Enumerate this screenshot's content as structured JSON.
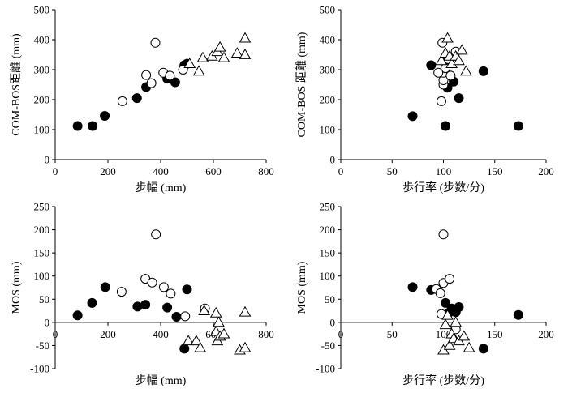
{
  "chart_data": [
    {
      "type": "scatter",
      "xlabel": "步幅 (mm)",
      "ylabel": "COM-BOS距離 (mm)",
      "xlim": [
        0,
        800
      ],
      "ylim": [
        0,
        500
      ],
      "xticks": [
        0,
        200,
        400,
        600,
        800
      ],
      "yticks": [
        0,
        100,
        200,
        300,
        400,
        500
      ],
      "series": [
        {
          "marker": "filled-circle",
          "points": [
            [
              85,
              112
            ],
            [
              142,
              112
            ],
            [
              188,
              146
            ],
            [
              310,
              205
            ],
            [
              345,
              242
            ],
            [
              425,
              270
            ],
            [
              455,
              258
            ],
            [
              490,
              315
            ],
            [
              500,
              320
            ]
          ]
        },
        {
          "marker": "open-circle",
          "points": [
            [
              255,
              195
            ],
            [
              345,
              282
            ],
            [
              365,
              255
            ],
            [
              380,
              390
            ],
            [
              410,
              290
            ],
            [
              435,
              280
            ],
            [
              485,
              300
            ]
          ]
        },
        {
          "marker": "open-triangle",
          "points": [
            [
              510,
              320
            ],
            [
              545,
              295
            ],
            [
              560,
              340
            ],
            [
              595,
              345
            ],
            [
              615,
              360
            ],
            [
              625,
              375
            ],
            [
              640,
              340
            ],
            [
              690,
              355
            ],
            [
              720,
              405
            ],
            [
              720,
              350
            ]
          ]
        }
      ]
    },
    {
      "type": "scatter",
      "xlabel": "歩行率 (步数/分)",
      "ylabel": "COM-BOS 距離 (mm)",
      "xlim": [
        0,
        200
      ],
      "ylim": [
        0,
        500
      ],
      "xticks": [
        0,
        50,
        100,
        150,
        200
      ],
      "yticks": [
        0,
        100,
        200,
        300,
        400,
        500
      ],
      "series": [
        {
          "marker": "filled-circle",
          "points": [
            [
              70,
              145
            ],
            [
              88,
              315
            ],
            [
              102,
              112
            ],
            [
              104,
              240
            ],
            [
              110,
              260
            ],
            [
              115,
              205
            ],
            [
              139,
              295
            ],
            [
              173,
              112
            ]
          ]
        },
        {
          "marker": "open-circle",
          "points": [
            [
              98,
              195
            ],
            [
              99,
              390
            ],
            [
              100,
              250
            ],
            [
              100,
              265
            ],
            [
              100,
              290
            ],
            [
              102,
              305
            ],
            [
              105,
              335
            ],
            [
              107,
              280
            ],
            [
              112,
              360
            ],
            [
              95,
              290
            ]
          ]
        },
        {
          "marker": "open-triangle",
          "points": [
            [
              98,
              330
            ],
            [
              102,
              355
            ],
            [
              104,
              405
            ],
            [
              106,
              345
            ],
            [
              108,
              320
            ],
            [
              112,
              345
            ],
            [
              115,
              330
            ],
            [
              118,
              365
            ],
            [
              122,
              295
            ]
          ]
        }
      ]
    },
    {
      "type": "scatter",
      "xlabel": "步幅 (mm)",
      "ylabel": "MOS (mm)",
      "xlim": [
        0,
        800
      ],
      "ylim": [
        -100,
        250
      ],
      "xticks": [
        0,
        200,
        400,
        600,
        800
      ],
      "yticks": [
        -100,
        -50,
        0,
        50,
        100,
        150,
        200,
        250
      ],
      "series": [
        {
          "marker": "filled-circle",
          "points": [
            [
              85,
              15
            ],
            [
              140,
              42
            ],
            [
              190,
              76
            ],
            [
              312,
              34
            ],
            [
              342,
              38
            ],
            [
              425,
              32
            ],
            [
              460,
              12
            ],
            [
              490,
              -57
            ],
            [
              500,
              71
            ]
          ]
        },
        {
          "marker": "open-circle",
          "points": [
            [
              252,
              66
            ],
            [
              342,
              94
            ],
            [
              368,
              86
            ],
            [
              382,
              190
            ],
            [
              412,
              76
            ],
            [
              438,
              62
            ],
            [
              493,
              13
            ],
            [
              568,
              30
            ]
          ]
        },
        {
          "marker": "open-triangle",
          "points": [
            [
              505,
              -40
            ],
            [
              535,
              -40
            ],
            [
              550,
              -55
            ],
            [
              565,
              25
            ],
            [
              610,
              20
            ],
            [
              610,
              -20
            ],
            [
              615,
              -40
            ],
            [
              620,
              0
            ],
            [
              625,
              -30
            ],
            [
              640,
              -25
            ],
            [
              700,
              -60
            ],
            [
              720,
              22
            ],
            [
              720,
              -55
            ]
          ]
        }
      ]
    },
    {
      "type": "scatter",
      "xlabel": "步行率 (步数/分)",
      "ylabel": "MOS (mm)",
      "xlim": [
        0,
        200
      ],
      "ylim": [
        -100,
        250
      ],
      "xticks": [
        0,
        50,
        100,
        150,
        200
      ],
      "yticks": [
        -100,
        -50,
        0,
        50,
        100,
        150,
        200,
        250
      ],
      "series": [
        {
          "marker": "filled-circle",
          "points": [
            [
              70,
              76
            ],
            [
              88,
              70
            ],
            [
              102,
              42
            ],
            [
              105,
              20
            ],
            [
              108,
              30
            ],
            [
              112,
              22
            ],
            [
              115,
              33
            ],
            [
              139,
              -57
            ],
            [
              173,
              16
            ]
          ]
        },
        {
          "marker": "open-circle",
          "points": [
            [
              93,
              72
            ],
            [
              97,
              63
            ],
            [
              98,
              18
            ],
            [
              100,
              190
            ],
            [
              100,
              85
            ],
            [
              106,
              94
            ],
            [
              112,
              -15
            ]
          ]
        },
        {
          "marker": "open-triangle",
          "points": [
            [
              100,
              -60
            ],
            [
              102,
              -5
            ],
            [
              104,
              15
            ],
            [
              106,
              -50
            ],
            [
              108,
              -25
            ],
            [
              110,
              -35
            ],
            [
              112,
              0
            ],
            [
              115,
              -40
            ],
            [
              120,
              -30
            ],
            [
              125,
              -55
            ]
          ]
        }
      ]
    }
  ]
}
